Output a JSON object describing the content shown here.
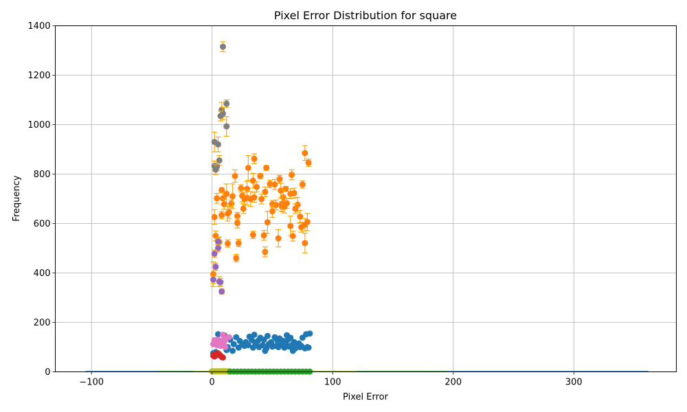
{
  "chart_data": {
    "type": "scatter",
    "title": "Pixel Error Distribution for square",
    "xlabel": "Pixel Error",
    "ylabel": "Frequency",
    "xlim": [
      -130,
      385
    ],
    "ylim": [
      0,
      1400
    ],
    "xticks": [
      -100,
      0,
      100,
      200,
      300
    ],
    "yticks": [
      0,
      200,
      400,
      600,
      800,
      1000,
      1200,
      1400
    ],
    "grid": true,
    "legend": "none",
    "colors": {
      "blue": "#1f77b4",
      "orange": "#ff7f0e",
      "green": "#2ca02c",
      "red": "#d62728",
      "purple": "#9467bd",
      "pink": "#e377c2",
      "gray": "#7f7f7f",
      "olive": "#bcbd22",
      "errorbar": "#ffa500"
    },
    "series": [
      {
        "color": "#7f7f7f",
        "points": [
          [
            9,
            1315
          ],
          [
            12,
            1085
          ],
          [
            8,
            1060
          ],
          [
            9,
            1045
          ],
          [
            7,
            1035
          ],
          [
            12,
            993
          ],
          [
            2,
            930
          ],
          [
            5,
            920
          ],
          [
            6,
            855
          ],
          [
            2,
            833
          ],
          [
            4,
            830
          ],
          [
            3,
            818
          ]
        ],
        "errors": [
          20,
          15,
          30,
          25,
          20,
          40,
          40,
          30,
          20,
          20,
          15,
          20
        ]
      },
      {
        "color": "#ff7f0e",
        "points": [
          [
            77,
            885
          ],
          [
            80,
            846
          ],
          [
            35,
            862
          ],
          [
            45,
            825
          ],
          [
            30,
            825
          ],
          [
            66,
            797
          ],
          [
            19,
            792
          ],
          [
            40,
            792
          ],
          [
            34,
            773
          ],
          [
            56,
            780
          ],
          [
            48,
            760
          ],
          [
            52,
            758
          ],
          [
            75,
            758
          ],
          [
            37,
            748
          ],
          [
            24,
            742
          ],
          [
            29,
            740
          ],
          [
            61,
            740
          ],
          [
            8,
            735
          ],
          [
            57,
            733
          ],
          [
            44,
            728
          ],
          [
            65,
            720
          ],
          [
            12,
            720
          ],
          [
            68,
            723
          ],
          [
            25,
            712
          ],
          [
            29,
            704
          ],
          [
            35,
            706
          ],
          [
            9,
            702
          ],
          [
            4,
            702
          ],
          [
            27,
            699
          ],
          [
            32,
            699
          ],
          [
            41,
            699
          ],
          [
            59,
            706
          ],
          [
            16,
            680
          ],
          [
            50,
            678
          ],
          [
            53,
            675
          ],
          [
            58,
            668
          ],
          [
            71,
            676
          ],
          [
            10,
            678
          ],
          [
            62,
            682
          ],
          [
            14,
            646
          ],
          [
            8,
            634
          ],
          [
            17,
            710
          ],
          [
            21,
            630
          ],
          [
            26,
            660
          ],
          [
            50,
            649
          ],
          [
            60,
            668
          ],
          [
            13,
            640
          ],
          [
            2,
            626
          ],
          [
            73,
            628
          ],
          [
            21,
            602
          ],
          [
            46,
            605
          ],
          [
            69,
            660
          ],
          [
            79,
            606
          ],
          [
            77,
            595
          ],
          [
            74,
            585
          ],
          [
            65,
            590
          ],
          [
            58,
            680
          ],
          [
            3,
            550
          ],
          [
            34,
            554
          ],
          [
            43,
            552
          ],
          [
            67,
            549
          ],
          [
            55,
            540
          ],
          [
            6,
            525
          ],
          [
            13,
            519
          ],
          [
            22,
            521
          ],
          [
            77,
            521
          ],
          [
            44,
            485
          ],
          [
            20,
            460
          ],
          [
            1,
            395
          ]
        ],
        "errors": [
          30,
          15,
          20,
          10,
          50,
          20,
          25,
          10,
          30,
          15,
          15,
          20,
          15,
          20,
          15,
          30,
          10,
          10,
          30,
          20,
          20,
          40,
          20,
          25,
          30,
          20,
          25,
          20,
          25,
          30,
          20,
          30,
          15,
          15,
          20,
          20,
          30,
          20,
          20,
          25,
          15,
          50,
          15,
          20,
          25,
          25,
          30,
          30,
          25,
          20,
          45,
          20,
          35,
          25,
          20,
          40,
          30,
          20,
          15,
          20,
          20,
          35,
          20,
          15,
          15,
          40,
          20,
          15,
          50
        ]
      },
      {
        "color": "#9467bd",
        "points": [
          [
            5,
            527
          ],
          [
            5,
            500
          ],
          [
            2,
            478
          ],
          [
            3,
            425
          ],
          [
            1,
            373
          ],
          [
            6,
            365
          ],
          [
            7,
            363
          ],
          [
            8,
            325
          ]
        ],
        "errors": [
          15,
          15,
          15,
          15,
          15,
          20,
          15,
          10
        ]
      },
      {
        "color": "#1f77b4",
        "points": [
          [
            5,
            152
          ],
          [
            10,
            148
          ],
          [
            35,
            150
          ],
          [
            46,
            145
          ],
          [
            62,
            148
          ],
          [
            78,
            152
          ],
          [
            81,
            155
          ],
          [
            20,
            140
          ],
          [
            31,
            142
          ],
          [
            40,
            138
          ],
          [
            52,
            140
          ],
          [
            56,
            135
          ],
          [
            65,
            138
          ],
          [
            75,
            138
          ],
          [
            15,
            130
          ],
          [
            23,
            125
          ],
          [
            28,
            120
          ],
          [
            33,
            128
          ],
          [
            38,
            125
          ],
          [
            43,
            130
          ],
          [
            49,
            120
          ],
          [
            54,
            128
          ],
          [
            59,
            125
          ],
          [
            63,
            130
          ],
          [
            68,
            120
          ],
          [
            72,
            115
          ],
          [
            9,
            118
          ],
          [
            18,
            112
          ],
          [
            25,
            110
          ],
          [
            30,
            108
          ],
          [
            36,
            115
          ],
          [
            42,
            108
          ],
          [
            47,
            112
          ],
          [
            53,
            105
          ],
          [
            57,
            110
          ],
          [
            61,
            115
          ],
          [
            66,
            108
          ],
          [
            70,
            112
          ],
          [
            74,
            105
          ],
          [
            79,
            100
          ],
          [
            13,
            100
          ],
          [
            22,
            98
          ],
          [
            27,
            105
          ],
          [
            34,
            98
          ],
          [
            39,
            100
          ],
          [
            45,
            95
          ],
          [
            50,
            102
          ],
          [
            55,
            100
          ],
          [
            60,
            98
          ],
          [
            64,
            102
          ],
          [
            69,
            95
          ],
          [
            73,
            100
          ],
          [
            77,
            95
          ],
          [
            80,
            98
          ],
          [
            12,
            88
          ],
          [
            17,
            85
          ],
          [
            44,
            85
          ],
          [
            67,
            85
          ],
          [
            3,
            80
          ],
          [
            1,
            75
          ]
        ],
        "errors": [
          5,
          5,
          5,
          5,
          5,
          5,
          5,
          5,
          5,
          5,
          5,
          5,
          5,
          5,
          5,
          5,
          5,
          5,
          5,
          5,
          5,
          5,
          5,
          5,
          5,
          5,
          5,
          5,
          5,
          5,
          5,
          5,
          5,
          5,
          5,
          5,
          5,
          5,
          5,
          5,
          5,
          5,
          5,
          5,
          5,
          5,
          5,
          5,
          5,
          5,
          5,
          5,
          5,
          5,
          5,
          5,
          5,
          5,
          5,
          5
        ]
      },
      {
        "color": "#e377c2",
        "points": [
          [
            9,
            150
          ],
          [
            14,
            140
          ],
          [
            12,
            135
          ],
          [
            5,
            130
          ],
          [
            2,
            128
          ],
          [
            8,
            125
          ],
          [
            10,
            122
          ],
          [
            3,
            118
          ],
          [
            6,
            115
          ],
          [
            1,
            112
          ],
          [
            4,
            108
          ],
          [
            7,
            105
          ],
          [
            11,
            100
          ]
        ],
        "errors": [
          5,
          5,
          5,
          5,
          5,
          5,
          5,
          5,
          5,
          5,
          5,
          5,
          5
        ]
      },
      {
        "color": "#d62728",
        "points": [
          [
            1,
            65
          ],
          [
            2,
            70
          ],
          [
            3,
            72
          ],
          [
            4,
            68
          ],
          [
            5,
            75
          ],
          [
            6,
            70
          ],
          [
            7,
            65
          ],
          [
            8,
            60
          ],
          [
            9,
            58
          ],
          [
            2,
            62
          ]
        ],
        "errors": [
          0,
          0,
          0,
          0,
          0,
          0,
          0,
          0,
          0,
          0
        ]
      },
      {
        "color": "#bcbd22",
        "points": [
          [
            0,
            2
          ],
          [
            1,
            2
          ],
          [
            2,
            2
          ],
          [
            3,
            2
          ],
          [
            4,
            2
          ],
          [
            5,
            2
          ],
          [
            6,
            2
          ],
          [
            7,
            2
          ],
          [
            8,
            2
          ],
          [
            9,
            2
          ],
          [
            10,
            2
          ],
          [
            11,
            2
          ],
          [
            12,
            2
          ],
          [
            13,
            2
          ],
          [
            14,
            2
          ]
        ],
        "errors": [
          0,
          0,
          0,
          0,
          0,
          0,
          0,
          0,
          0,
          0,
          0,
          0,
          0,
          0,
          0
        ]
      },
      {
        "color": "#2ca02c",
        "points": [
          [
            15,
            1
          ],
          [
            18,
            1
          ],
          [
            21,
            1
          ],
          [
            24,
            1
          ],
          [
            27,
            1
          ],
          [
            30,
            1
          ],
          [
            33,
            1
          ],
          [
            36,
            1
          ],
          [
            39,
            1
          ],
          [
            42,
            1
          ],
          [
            45,
            1
          ],
          [
            48,
            1
          ],
          [
            51,
            1
          ],
          [
            54,
            1
          ],
          [
            57,
            1
          ],
          [
            60,
            1
          ],
          [
            63,
            1
          ],
          [
            66,
            1
          ],
          [
            69,
            1
          ],
          [
            72,
            1
          ],
          [
            75,
            1
          ],
          [
            78,
            1
          ],
          [
            81,
            1
          ]
        ],
        "errors": [
          0,
          0,
          0,
          0,
          0,
          0,
          0,
          0,
          0,
          0,
          0,
          0,
          0,
          0,
          0,
          0,
          0,
          0,
          0,
          0,
          0,
          0,
          0
        ]
      }
    ],
    "baseline_curves": [
      {
        "color": "#1f77b4",
        "x_range": [
          -105,
          362
        ]
      },
      {
        "color": "#2ca02c",
        "x_range": [
          -45,
          195
        ]
      },
      {
        "color": "#bcbd22",
        "x_range": [
          -15,
          120
        ]
      }
    ]
  }
}
